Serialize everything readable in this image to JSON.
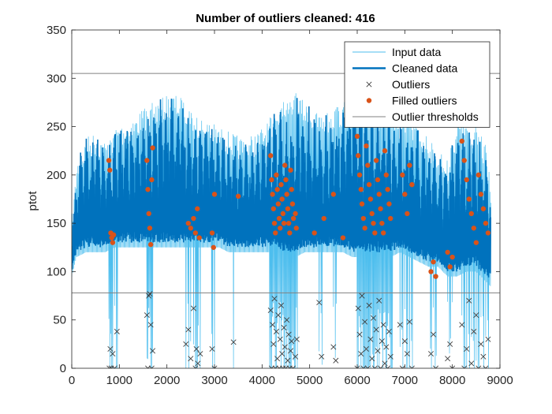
{
  "chart_data": {
    "type": "line",
    "title": "Number of outliers cleaned: 416",
    "xlabel": "",
    "ylabel": "ptot",
    "xlim": [
      0,
      9000
    ],
    "ylim": [
      0,
      350
    ],
    "x_ticks": [
      0,
      1000,
      2000,
      3000,
      4000,
      5000,
      6000,
      7000,
      8000,
      9000
    ],
    "y_ticks": [
      0,
      50,
      100,
      150,
      200,
      250,
      300,
      350
    ],
    "grid": false,
    "legend_position": "top-right",
    "thresholds": {
      "upper": 305,
      "lower": 78
    },
    "series": [
      {
        "name": "Input data",
        "color": "#4DBEEE",
        "style": "thin-line"
      },
      {
        "name": "Cleaned data",
        "color": "#0072BD",
        "style": "thick-line"
      },
      {
        "name": "Outliers",
        "color": "#404040",
        "style": "x-marker"
      },
      {
        "name": "Filled outliers",
        "color": "#D95319",
        "style": "dot-marker"
      },
      {
        "name": "Outlier thresholds",
        "color": "#808080",
        "style": "thin-line"
      }
    ],
    "envelope": {
      "x": [
        0,
        100,
        300,
        500,
        700,
        900,
        1100,
        1300,
        1500,
        1700,
        1900,
        2100,
        2300,
        2500,
        2700,
        2900,
        3100,
        3300,
        3500,
        3700,
        3900,
        4100,
        4300,
        4500,
        4700,
        4900,
        5100,
        5300,
        5500,
        5700,
        5900,
        6100,
        6300,
        6500,
        6700,
        6900,
        7100,
        7300,
        7500,
        7700,
        7900,
        8100,
        8300,
        8500,
        8700,
        8800
      ],
      "peak": [
        160,
        215,
        240,
        245,
        235,
        250,
        255,
        260,
        270,
        275,
        280,
        285,
        280,
        270,
        260,
        255,
        250,
        245,
        240,
        240,
        245,
        255,
        270,
        285,
        285,
        275,
        265,
        265,
        270,
        275,
        285,
        290,
        290,
        280,
        270,
        260,
        260,
        250,
        240,
        225,
        215,
        260,
        255,
        250,
        230,
        190
      ],
      "base": [
        100,
        120,
        125,
        125,
        125,
        130,
        130,
        130,
        130,
        130,
        130,
        130,
        130,
        130,
        130,
        130,
        130,
        125,
        125,
        125,
        125,
        125,
        125,
        120,
        120,
        125,
        125,
        125,
        125,
        125,
        120,
        120,
        120,
        120,
        120,
        125,
        120,
        115,
        110,
        110,
        100,
        100,
        105,
        105,
        95,
        90
      ]
    },
    "dropout_regions": [
      [
        4150,
        4750
      ],
      [
        6000,
        6750
      ]
    ],
    "outliers": [
      {
        "x": 790,
        "y": 0
      },
      {
        "x": 810,
        "y": 20
      },
      {
        "x": 830,
        "y": 0
      },
      {
        "x": 860,
        "y": 15
      },
      {
        "x": 900,
        "y": 0
      },
      {
        "x": 950,
        "y": 38
      },
      {
        "x": 1580,
        "y": 55
      },
      {
        "x": 1600,
        "y": 0
      },
      {
        "x": 1620,
        "y": 75
      },
      {
        "x": 1640,
        "y": 77
      },
      {
        "x": 1660,
        "y": 45
      },
      {
        "x": 1680,
        "y": 0
      },
      {
        "x": 1700,
        "y": 18
      },
      {
        "x": 2400,
        "y": 25
      },
      {
        "x": 2450,
        "y": 40
      },
      {
        "x": 2500,
        "y": 10
      },
      {
        "x": 2560,
        "y": 62
      },
      {
        "x": 2600,
        "y": 0
      },
      {
        "x": 2620,
        "y": 20
      },
      {
        "x": 2650,
        "y": 5
      },
      {
        "x": 2700,
        "y": 15
      },
      {
        "x": 2950,
        "y": 20
      },
      {
        "x": 3000,
        "y": 0
      },
      {
        "x": 3400,
        "y": 27
      },
      {
        "x": 4180,
        "y": 60
      },
      {
        "x": 4200,
        "y": 0
      },
      {
        "x": 4220,
        "y": 45
      },
      {
        "x": 4240,
        "y": 25
      },
      {
        "x": 4260,
        "y": 72
      },
      {
        "x": 4280,
        "y": 0
      },
      {
        "x": 4300,
        "y": 38
      },
      {
        "x": 4320,
        "y": 10
      },
      {
        "x": 4340,
        "y": 55
      },
      {
        "x": 4360,
        "y": 0
      },
      {
        "x": 4380,
        "y": 30
      },
      {
        "x": 4400,
        "y": 65
      },
      {
        "x": 4420,
        "y": 15
      },
      {
        "x": 4440,
        "y": 0
      },
      {
        "x": 4460,
        "y": 42
      },
      {
        "x": 4480,
        "y": 22
      },
      {
        "x": 4500,
        "y": 0
      },
      {
        "x": 4520,
        "y": 50
      },
      {
        "x": 4540,
        "y": 8
      },
      {
        "x": 4560,
        "y": 35
      },
      {
        "x": 4580,
        "y": 0
      },
      {
        "x": 4600,
        "y": 18
      },
      {
        "x": 4620,
        "y": 28
      },
      {
        "x": 4650,
        "y": 0
      },
      {
        "x": 4700,
        "y": 12
      },
      {
        "x": 4730,
        "y": 30
      },
      {
        "x": 5200,
        "y": 68
      },
      {
        "x": 5250,
        "y": 12
      },
      {
        "x": 5500,
        "y": 22
      },
      {
        "x": 5550,
        "y": 8
      },
      {
        "x": 6000,
        "y": 0
      },
      {
        "x": 6020,
        "y": 62
      },
      {
        "x": 6050,
        "y": 35
      },
      {
        "x": 6080,
        "y": 15
      },
      {
        "x": 6100,
        "y": 75
      },
      {
        "x": 6130,
        "y": 0
      },
      {
        "x": 6160,
        "y": 48
      },
      {
        "x": 6190,
        "y": 20
      },
      {
        "x": 6220,
        "y": 0
      },
      {
        "x": 6250,
        "y": 65
      },
      {
        "x": 6280,
        "y": 30
      },
      {
        "x": 6310,
        "y": 10
      },
      {
        "x": 6340,
        "y": 52
      },
      {
        "x": 6370,
        "y": 0
      },
      {
        "x": 6400,
        "y": 40
      },
      {
        "x": 6430,
        "y": 18
      },
      {
        "x": 6460,
        "y": 70
      },
      {
        "x": 6490,
        "y": 0
      },
      {
        "x": 6520,
        "y": 28
      },
      {
        "x": 6550,
        "y": 45
      },
      {
        "x": 6580,
        "y": 5
      },
      {
        "x": 6610,
        "y": 22
      },
      {
        "x": 6640,
        "y": 0
      },
      {
        "x": 6670,
        "y": 38
      },
      {
        "x": 6700,
        "y": 12
      },
      {
        "x": 6900,
        "y": 45
      },
      {
        "x": 6950,
        "y": 0
      },
      {
        "x": 7000,
        "y": 28
      },
      {
        "x": 7050,
        "y": 15
      },
      {
        "x": 7100,
        "y": 48
      },
      {
        "x": 7150,
        "y": 0
      },
      {
        "x": 7550,
        "y": 15
      },
      {
        "x": 7600,
        "y": 35
      },
      {
        "x": 7650,
        "y": 0
      },
      {
        "x": 7900,
        "y": 10
      },
      {
        "x": 7950,
        "y": 25
      },
      {
        "x": 8000,
        "y": 0
      },
      {
        "x": 8200,
        "y": 45
      },
      {
        "x": 8250,
        "y": 0
      },
      {
        "x": 8300,
        "y": 20
      },
      {
        "x": 8350,
        "y": 70
      },
      {
        "x": 8400,
        "y": 5
      },
      {
        "x": 8450,
        "y": 38
      },
      {
        "x": 8500,
        "y": 55
      },
      {
        "x": 8550,
        "y": 0
      },
      {
        "x": 8600,
        "y": 25
      },
      {
        "x": 8650,
        "y": 12
      },
      {
        "x": 8700,
        "y": 0
      },
      {
        "x": 8750,
        "y": 30
      }
    ],
    "filled_outliers": [
      {
        "x": 780,
        "y": 215
      },
      {
        "x": 800,
        "y": 205
      },
      {
        "x": 820,
        "y": 140
      },
      {
        "x": 840,
        "y": 135
      },
      {
        "x": 860,
        "y": 130
      },
      {
        "x": 880,
        "y": 138
      },
      {
        "x": 1580,
        "y": 215
      },
      {
        "x": 1600,
        "y": 185
      },
      {
        "x": 1620,
        "y": 160
      },
      {
        "x": 1640,
        "y": 145
      },
      {
        "x": 1660,
        "y": 128
      },
      {
        "x": 1680,
        "y": 195
      },
      {
        "x": 1700,
        "y": 228
      },
      {
        "x": 2450,
        "y": 150
      },
      {
        "x": 2500,
        "y": 145
      },
      {
        "x": 2560,
        "y": 155
      },
      {
        "x": 2600,
        "y": 140
      },
      {
        "x": 2640,
        "y": 165
      },
      {
        "x": 2680,
        "y": 135
      },
      {
        "x": 2950,
        "y": 140
      },
      {
        "x": 2980,
        "y": 125
      },
      {
        "x": 3000,
        "y": 180
      },
      {
        "x": 3500,
        "y": 178
      },
      {
        "x": 4180,
        "y": 220
      },
      {
        "x": 4200,
        "y": 195
      },
      {
        "x": 4220,
        "y": 180
      },
      {
        "x": 4240,
        "y": 165
      },
      {
        "x": 4260,
        "y": 150
      },
      {
        "x": 4280,
        "y": 140
      },
      {
        "x": 4300,
        "y": 200
      },
      {
        "x": 4320,
        "y": 185
      },
      {
        "x": 4340,
        "y": 170
      },
      {
        "x": 4360,
        "y": 155
      },
      {
        "x": 4380,
        "y": 145
      },
      {
        "x": 4400,
        "y": 190
      },
      {
        "x": 4420,
        "y": 175
      },
      {
        "x": 4440,
        "y": 160
      },
      {
        "x": 4460,
        "y": 150
      },
      {
        "x": 4480,
        "y": 210
      },
      {
        "x": 4500,
        "y": 195
      },
      {
        "x": 4520,
        "y": 180
      },
      {
        "x": 4540,
        "y": 165
      },
      {
        "x": 4560,
        "y": 150
      },
      {
        "x": 4580,
        "y": 140
      },
      {
        "x": 4600,
        "y": 205
      },
      {
        "x": 4620,
        "y": 185
      },
      {
        "x": 4640,
        "y": 170
      },
      {
        "x": 4660,
        "y": 155
      },
      {
        "x": 4700,
        "y": 160
      },
      {
        "x": 4720,
        "y": 145
      },
      {
        "x": 5100,
        "y": 140
      },
      {
        "x": 5300,
        "y": 155
      },
      {
        "x": 5500,
        "y": 180
      },
      {
        "x": 5700,
        "y": 135
      },
      {
        "x": 6000,
        "y": 240
      },
      {
        "x": 6020,
        "y": 220
      },
      {
        "x": 6050,
        "y": 200
      },
      {
        "x": 6080,
        "y": 185
      },
      {
        "x": 6100,
        "y": 170
      },
      {
        "x": 6130,
        "y": 155
      },
      {
        "x": 6160,
        "y": 145
      },
      {
        "x": 6190,
        "y": 230
      },
      {
        "x": 6220,
        "y": 210
      },
      {
        "x": 6250,
        "y": 190
      },
      {
        "x": 6280,
        "y": 175
      },
      {
        "x": 6310,
        "y": 160
      },
      {
        "x": 6340,
        "y": 150
      },
      {
        "x": 6370,
        "y": 140
      },
      {
        "x": 6400,
        "y": 215
      },
      {
        "x": 6430,
        "y": 195
      },
      {
        "x": 6460,
        "y": 180
      },
      {
        "x": 6490,
        "y": 165
      },
      {
        "x": 6520,
        "y": 150
      },
      {
        "x": 6550,
        "y": 140
      },
      {
        "x": 6580,
        "y": 225
      },
      {
        "x": 6610,
        "y": 200
      },
      {
        "x": 6640,
        "y": 185
      },
      {
        "x": 6670,
        "y": 170
      },
      {
        "x": 6700,
        "y": 155
      },
      {
        "x": 6950,
        "y": 200
      },
      {
        "x": 7000,
        "y": 180
      },
      {
        "x": 7050,
        "y": 160
      },
      {
        "x": 7100,
        "y": 210
      },
      {
        "x": 7150,
        "y": 190
      },
      {
        "x": 7550,
        "y": 100
      },
      {
        "x": 7600,
        "y": 110
      },
      {
        "x": 7650,
        "y": 95
      },
      {
        "x": 7900,
        "y": 120
      },
      {
        "x": 7950,
        "y": 105
      },
      {
        "x": 8000,
        "y": 115
      },
      {
        "x": 8200,
        "y": 235
      },
      {
        "x": 8250,
        "y": 215
      },
      {
        "x": 8300,
        "y": 195
      },
      {
        "x": 8350,
        "y": 175
      },
      {
        "x": 8400,
        "y": 160
      },
      {
        "x": 8450,
        "y": 145
      },
      {
        "x": 8500,
        "y": 130
      },
      {
        "x": 8550,
        "y": 200
      },
      {
        "x": 8600,
        "y": 180
      },
      {
        "x": 8650,
        "y": 165
      },
      {
        "x": 8700,
        "y": 150
      },
      {
        "x": 8750,
        "y": 140
      }
    ]
  }
}
